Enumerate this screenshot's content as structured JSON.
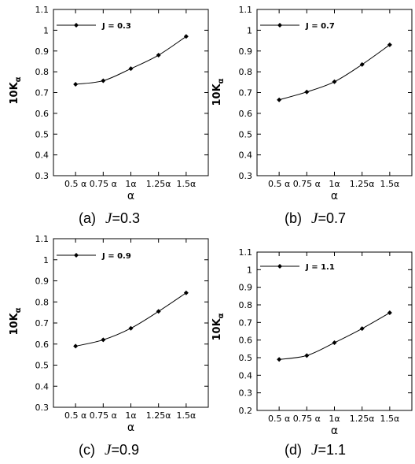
{
  "chart_data": [
    {
      "type": "line",
      "caption_prefix": "(a)",
      "caption_var": "J",
      "caption_value": "=0.3",
      "categories": [
        "0.5 α",
        "0.75 α",
        "1α",
        "1.25α",
        "1.5α"
      ],
      "x": [
        0.5,
        0.75,
        1.0,
        1.25,
        1.5
      ],
      "series": [
        {
          "name": "J = 0.3",
          "values": [
            0.74,
            0.757,
            0.815,
            0.88,
            0.97
          ]
        }
      ],
      "xlabel": "α",
      "ylabel_main": "10K",
      "ylabel_sub": "α",
      "ylim": [
        0.3,
        1.1
      ],
      "yticks": [
        "0.3",
        "0.4",
        "0.5",
        "0.6",
        "0.7",
        "0.8",
        "0.9",
        "1",
        "1.1"
      ],
      "grid": false,
      "legend_position": "top-left"
    },
    {
      "type": "line",
      "caption_prefix": "(b)",
      "caption_var": "J",
      "caption_value": "=0.7",
      "categories": [
        "0.5 α",
        "0.75 α",
        "1α",
        "1.25α",
        "1.5α"
      ],
      "x": [
        0.5,
        0.75,
        1.0,
        1.25,
        1.5
      ],
      "series": [
        {
          "name": "J = 0.7",
          "values": [
            0.665,
            0.703,
            0.752,
            0.835,
            0.93
          ]
        }
      ],
      "xlabel": "α",
      "ylabel_main": "10K",
      "ylabel_sub": "α",
      "ylim": [
        0.3,
        1.1
      ],
      "yticks": [
        "0.3",
        "0.4",
        "0.5",
        "0.6",
        "0.7",
        "0.8",
        "0.9",
        "1",
        "1.1"
      ],
      "grid": false,
      "legend_position": "top-left"
    },
    {
      "type": "line",
      "caption_prefix": "(c)",
      "caption_var": "J",
      "caption_value": "=0.9",
      "categories": [
        "0.5 α",
        "0.75 α",
        "1α",
        "1.25α",
        "1.5α"
      ],
      "x": [
        0.5,
        0.75,
        1.0,
        1.25,
        1.5
      ],
      "series": [
        {
          "name": "J = 0.9",
          "values": [
            0.59,
            0.62,
            0.675,
            0.755,
            0.843
          ]
        }
      ],
      "xlabel": "α",
      "ylabel_main": "10K",
      "ylabel_sub": "α",
      "ylim": [
        0.3,
        1.1
      ],
      "yticks": [
        "0.3",
        "0.4",
        "0.5",
        "0.6",
        "0.7",
        "0.8",
        "0.9",
        "1",
        "1.1"
      ],
      "grid": false,
      "legend_position": "top-left"
    },
    {
      "type": "line",
      "caption_prefix": "(d)",
      "caption_var": "J",
      "caption_value": "=1.1",
      "categories": [
        "0.5 α",
        "0.75 α",
        "1α",
        "1.25α",
        "1.5α"
      ],
      "x": [
        0.5,
        0.75,
        1.0,
        1.25,
        1.5
      ],
      "series": [
        {
          "name": "J = 1.1",
          "values": [
            0.49,
            0.512,
            0.585,
            0.665,
            0.755
          ]
        }
      ],
      "xlabel": "α",
      "ylabel_main": "10K",
      "ylabel_sub": "α",
      "ylim": [
        0.2,
        1.1
      ],
      "yticks": [
        "0.2",
        "0.3",
        "0.4",
        "0.5",
        "0.6",
        "0.7",
        "0.8",
        "0.9",
        "1",
        "1.1"
      ],
      "grid": false,
      "legend_position": "top-left"
    }
  ],
  "colors": {
    "line": "#000000",
    "marker": "#000000",
    "frame": "#000000"
  }
}
